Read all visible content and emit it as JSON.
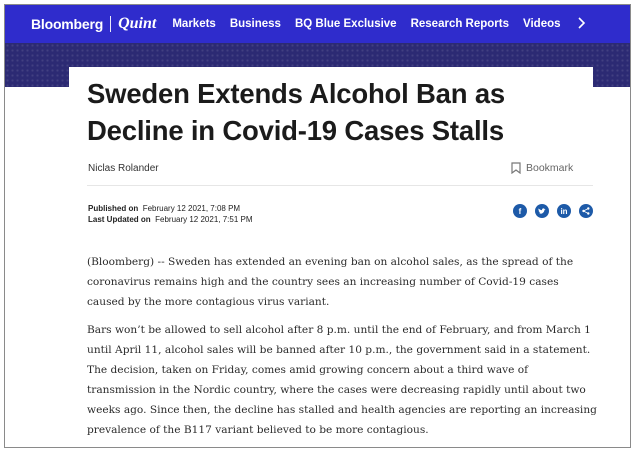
{
  "nav": {
    "brand_main": "Bloomberg",
    "brand_sub": "Quint",
    "items": [
      "Markets",
      "Business",
      "BQ Blue Exclusive",
      "Research Reports",
      "Videos"
    ],
    "more_icon": "chevron-right-icon"
  },
  "article": {
    "title_line1": "Sweden Extends Alcohol Ban as",
    "title_line2": "Decline in Covid-19 Cases Stalls",
    "author": "Niclas Rolander",
    "bookmark_label": "Bookmark",
    "published_label": "Published on",
    "published_value": "February 12 2021, 7:08 PM",
    "updated_label": "Last Updated on",
    "updated_value": "February 12 2021, 7:51 PM",
    "share_icons": [
      "facebook-icon",
      "twitter-icon",
      "linkedin-icon",
      "share-icon"
    ],
    "paragraphs": [
      "(Bloomberg) -- Sweden has extended an evening ban on alcohol sales, as the spread of the coronavirus remains high and the country sees an increasing number of Covid-19 cases caused by the more contagious virus variant.",
      "Bars won’t be allowed to sell alcohol after 8 p.m. until the end of February, and from March 1 until April 11, alcohol sales will be banned after 10 p.m., the government said in a statement. The decision, taken on Friday, comes amid growing concern about a third wave of transmission in the Nordic country, where the cases were decreasing rapidly until about two weeks ago. Since then, the decline has stalled and health agencies are reporting an increasing prevalence of the B117 variant believed to be more contagious."
    ]
  },
  "colors": {
    "nav_bg": "#2f2ccc",
    "band_bg": "#2c2a73",
    "share_blue": "#1d5aa8"
  }
}
